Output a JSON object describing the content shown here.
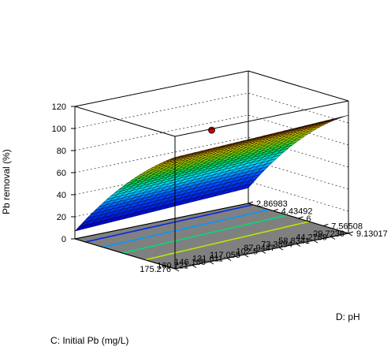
{
  "chart_data": {
    "type": "surface3d",
    "title": "",
    "x_axis": {
      "label": "C: Initial Pb (mg/L)",
      "ticks": [
        "29.7236",
        "44.2789",
        "58.8341",
        "73.3894",
        "87.9447",
        "102.5",
        "117.055",
        "131.611",
        "146.166",
        "160.721",
        "175.276"
      ],
      "range": [
        29.7236,
        175.276
      ]
    },
    "y_axis": {
      "label": "D: pH",
      "ticks": [
        "2.86983",
        "4.43492",
        "6",
        "7.56508",
        "9.13017"
      ],
      "range": [
        2.86983,
        9.13017
      ]
    },
    "z_axis": {
      "label": "Pb removal (%)",
      "ticks": [
        "0",
        "20",
        "40",
        "60",
        "80",
        "100",
        "120"
      ],
      "range": [
        0,
        120
      ]
    },
    "grid_resolution": 25,
    "surface_corners": {
      "c_min_ph_min": 14,
      "c_max_ph_min": 7,
      "c_min_ph_max": 107,
      "c_max_ph_max": 101
    },
    "contour_levels": [
      20,
      40,
      60,
      80
    ],
    "design_point": {
      "c": 102.5,
      "ph": 6,
      "removal": 96
    },
    "colors": {
      "floor": "#808080",
      "background": "#ffffff",
      "design_point": "#d00000",
      "mesh_line": "#000000"
    }
  }
}
